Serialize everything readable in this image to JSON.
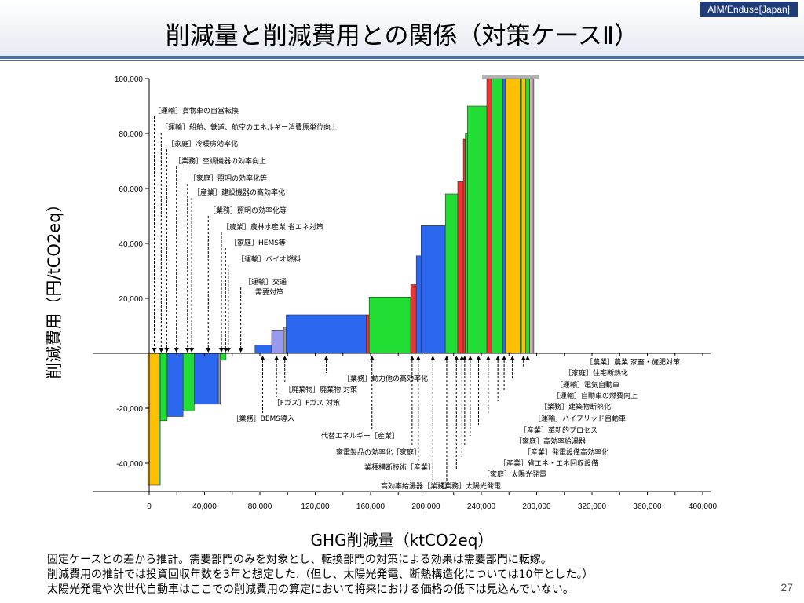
{
  "header": {
    "tag": "AIM/Enduse[Japan]",
    "title": "削減量と削減費用との関係（対策ケースⅡ）"
  },
  "axes": {
    "ylabel": "削減費用（円/tCO2eq）",
    "xlabel": "GHG削減量（ktCO2eq）"
  },
  "notes": [
    "固定ケースとの差から推計。需要部門のみを対象とし、転換部門の対策による効果は需要部門に転嫁。",
    "削減費用の推計では投資回収年数を3年と想定した.（但し、太陽光発電、断熱構造化については10年とした。）",
    "太陽光発電や次世代自動車はここでの削減費用の算定において将来における価格の低下は見込んでいない。"
  ],
  "page_number": "27",
  "chart_data": {
    "type": "bar",
    "variant": "marginal-abatement-cost-curve",
    "x_unit": "ktCO2eq",
    "y_unit": "円/tCO2eq",
    "xlim": [
      0,
      400000
    ],
    "ylim": [
      -50000,
      100000
    ],
    "x_ticks": [
      0,
      40000,
      80000,
      120000,
      160000,
      200000,
      240000,
      280000,
      320000,
      360000,
      400000
    ],
    "x_tick_labels": [
      "0",
      "40,000",
      "80,000",
      "120,000",
      "160,000",
      "200,000",
      "240,000",
      "280,000",
      "320,000",
      "360,000",
      "400,000"
    ],
    "y_ticks": [
      -40000,
      -20000,
      20000,
      40000,
      60000,
      80000,
      100000
    ],
    "y_tick_labels": [
      "-40,000",
      "-20,000",
      "20,000",
      "40,000",
      "60,000",
      "80,000",
      "100,000"
    ],
    "colors": {
      "transport": "#ffc000",
      "green": "#22dd33",
      "blue": "#2c67f0",
      "red": "#ee3333",
      "lavender": "#9999ee",
      "gray": "#999999",
      "pink": "#ff99bb"
    },
    "bars": [
      {
        "x0": -1000,
        "x1": 7000,
        "y": -48000,
        "color": "transport"
      },
      {
        "x0": 7000,
        "x1": 8000,
        "y": -48000,
        "color": "green"
      },
      {
        "x0": 8000,
        "x1": 13000,
        "y": -24500,
        "color": "green"
      },
      {
        "x0": 13000,
        "x1": 24500,
        "y": -23000,
        "color": "blue"
      },
      {
        "x0": 24500,
        "x1": 32500,
        "y": -21000,
        "color": "green"
      },
      {
        "x0": 32500,
        "x1": 50000,
        "y": -18500,
        "color": "blue"
      },
      {
        "x0": 50000,
        "x1": 51500,
        "y": -18500,
        "color": "gray"
      },
      {
        "x0": 51500,
        "x1": 55500,
        "y": -2500,
        "color": "green"
      },
      {
        "x0": 76500,
        "x1": 88500,
        "y": 3000,
        "color": "blue"
      },
      {
        "x0": 88500,
        "x1": 97000,
        "y": 8500,
        "color": "lavender"
      },
      {
        "x0": 97000,
        "x1": 99000,
        "y": 9500,
        "color": "gray"
      },
      {
        "x0": 99000,
        "x1": 157000,
        "y": 14000,
        "color": "blue"
      },
      {
        "x0": 157000,
        "x1": 159000,
        "y": 14000,
        "color": "red"
      },
      {
        "x0": 159000,
        "x1": 189000,
        "y": 20500,
        "color": "green"
      },
      {
        "x0": 189000,
        "x1": 193000,
        "y": 25000,
        "color": "red"
      },
      {
        "x0": 193000,
        "x1": 196500,
        "y": 35500,
        "color": "blue"
      },
      {
        "x0": 196500,
        "x1": 214000,
        "y": 46500,
        "color": "blue"
      },
      {
        "x0": 214000,
        "x1": 223000,
        "y": 58000,
        "color": "green"
      },
      {
        "x0": 223000,
        "x1": 227000,
        "y": 62500,
        "color": "red"
      },
      {
        "x0": 227000,
        "x1": 228500,
        "y": 78000,
        "color": "red"
      },
      {
        "x0": 228500,
        "x1": 230000,
        "y": 80000,
        "color": "green"
      },
      {
        "x0": 230000,
        "x1": 244000,
        "y": 90000,
        "color": "green"
      },
      {
        "x0": 244000,
        "x1": 247500,
        "y": 100000,
        "color": "red"
      },
      {
        "x0": 247500,
        "x1": 255500,
        "y": 100000,
        "color": "green"
      },
      {
        "x0": 255500,
        "x1": 257500,
        "y": 100000,
        "color": "blue"
      },
      {
        "x0": 257500,
        "x1": 268000,
        "y": 100000,
        "color": "transport"
      },
      {
        "x0": 268000,
        "x1": 269000,
        "y": 100000,
        "color": "green"
      },
      {
        "x0": 269000,
        "x1": 272000,
        "y": 100000,
        "color": "transport"
      },
      {
        "x0": 272000,
        "x1": 275000,
        "y": 100000,
        "color": "green"
      },
      {
        "x0": 275000,
        "x1": 276500,
        "y": 100000,
        "color": "pink"
      },
      {
        "x0": 276500,
        "x1": 278000,
        "y": 100000,
        "color": "gray"
      }
    ],
    "annotations_top": [
      {
        "text": "［運輸］貨物車の自営転換",
        "x": 2000
      },
      {
        "text": "［運輸］船舶、鉄道、航空のエネルギー消費原単位向上",
        "x": 7000
      },
      {
        "text": "［家庭］冷暖房効率化",
        "x": 11000
      },
      {
        "text": "［業務］空調機器の効率向上",
        "x": 18000
      },
      {
        "text": "［家庭］照明の効率化等",
        "x": 26000
      },
      {
        "text": "［産業］建設機器の高効率化",
        "x": 29000
      },
      {
        "text": "［業務］照明の効率化等",
        "x": 41000
      },
      {
        "text": "［農業］農林水産業 省エネ対策",
        "x": 50500
      },
      {
        "text": "［家庭］HEMS等",
        "x": 53500
      },
      {
        "text": "［運輸］バイオ燃料",
        "x": 55500
      },
      {
        "text": "［運輸］交通",
        "x": 64500
      },
      {
        "text": "需要対策",
        "x": 64500
      }
    ],
    "annotations_bottom": [
      {
        "text": "［業務］動力他の高効率化",
        "x": 128000
      },
      {
        "text": "［廃棄物］廃棄物 対策",
        "x": 98000
      },
      {
        "text": "［Fガス］Fガス 対策",
        "x": 92000
      },
      {
        "text": "［業務］BEMS導入",
        "x": 82000
      },
      {
        "text": "代替エネルギー［産業］",
        "x": 161000
      },
      {
        "text": "家電製品の効率化［家庭］",
        "x": 190000
      },
      {
        "text": "業種横断技術［産業］",
        "x": 194500
      },
      {
        "text": "高効率給湯器［業務］",
        "x": 205000
      },
      {
        "text": "［業務］太陽光発電",
        "x": 215000
      },
      {
        "text": "［家庭］太陽光発電",
        "x": 222000
      },
      {
        "text": "［産業］省エネ・エネ回収設備",
        "x": 226000
      },
      {
        "text": "［産業］発電設備高効率化",
        "x": 228000
      },
      {
        "text": "［家庭］高効率給湯器",
        "x": 232000
      },
      {
        "text": "［産業］革新的プロセス",
        "x": 238000
      },
      {
        "text": "［運輸］ハイブリッド自動車",
        "x": 245000
      },
      {
        "text": "［業務］建築物断熱化",
        "x": 252000
      },
      {
        "text": "［運輸］自動車の燃費向上",
        "x": 256500
      },
      {
        "text": "［運輸］電気自動車",
        "x": 262500
      },
      {
        "text": "［家庭］住宅断熱化",
        "x": 270500
      },
      {
        "text": "［農業］農業 家畜・施肥対策",
        "x": 273500
      }
    ]
  }
}
